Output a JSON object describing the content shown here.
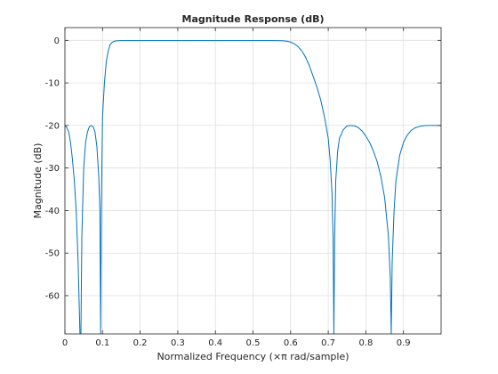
{
  "chart_data": {
    "type": "line",
    "title": "Magnitude Response (dB)",
    "xlabel": "Normalized Frequency (×π rad/sample)",
    "ylabel": "Magnitude (dB)",
    "xlim": [
      0,
      1
    ],
    "ylim": [
      -69,
      3
    ],
    "xticks": [
      0,
      0.1,
      0.2,
      0.3,
      0.4,
      0.5,
      0.6,
      0.7,
      0.8,
      0.9
    ],
    "xtick_labels": [
      "0",
      "0.1",
      "0.2",
      "0.3",
      "0.4",
      "0.5",
      "0.6",
      "0.7",
      "0.8",
      "0.9"
    ],
    "yticks": [
      0,
      -10,
      -20,
      -30,
      -40,
      -50,
      -60
    ],
    "ytick_labels": [
      "0",
      "-10",
      "-20",
      "-30",
      "-40",
      "-50",
      "-60"
    ],
    "grid": true,
    "legend": "none",
    "line_color": "#0072bd",
    "series": [
      {
        "x": [
          0,
          0.005,
          0.01,
          0.015,
          0.02,
          0.025,
          0.03,
          0.035,
          0.04,
          0.0425,
          0.045,
          0.05,
          0.055,
          0.06,
          0.065,
          0.07,
          0.075,
          0.08,
          0.085,
          0.09,
          0.093,
          0.095,
          0.097,
          0.1,
          0.105,
          0.11,
          0.115,
          0.12,
          0.125,
          0.13,
          0.135,
          0.14,
          0.145,
          0.15,
          0.2,
          0.3,
          0.4,
          0.5,
          0.55,
          0.575,
          0.59,
          0.6,
          0.61,
          0.62,
          0.63,
          0.64,
          0.65,
          0.66,
          0.67,
          0.68,
          0.69,
          0.7,
          0.705,
          0.71,
          0.713,
          0.715,
          0.717,
          0.72,
          0.725,
          0.73,
          0.74,
          0.75,
          0.76,
          0.77,
          0.78,
          0.79,
          0.8,
          0.81,
          0.82,
          0.83,
          0.84,
          0.85,
          0.86,
          0.865,
          0.8675,
          0.87,
          0.875,
          0.88,
          0.89,
          0.9,
          0.91,
          0.92,
          0.93,
          0.94,
          0.95,
          0.96,
          0.97,
          0.98,
          0.99,
          1.0
        ],
        "y": [
          -20,
          -20.5,
          -21.5,
          -24,
          -28,
          -33,
          -40,
          -52,
          -69,
          -69,
          -46,
          -30,
          -24,
          -21.5,
          -20.3,
          -20,
          -20.3,
          -21.5,
          -25,
          -32,
          -40,
          -69,
          -38,
          -18,
          -10,
          -5,
          -2.5,
          -1,
          -0.5,
          -0.25,
          -0.15,
          -0.1,
          -0.08,
          -0.07,
          -0.05,
          -0.05,
          -0.05,
          -0.06,
          -0.05,
          -0.1,
          -0.2,
          -0.4,
          -0.8,
          -1.5,
          -2.5,
          -4,
          -6,
          -8.5,
          -11,
          -14,
          -18,
          -23,
          -28,
          -36,
          -47,
          -69,
          -47,
          -33,
          -26,
          -23,
          -21,
          -20.1,
          -20,
          -20.1,
          -20.5,
          -21.3,
          -22.5,
          -24,
          -26,
          -28.5,
          -32,
          -37,
          -46,
          -56,
          -69,
          -52,
          -40,
          -33,
          -27,
          -24,
          -22.3,
          -21.2,
          -20.6,
          -20.3,
          -20.1,
          -20,
          -20,
          -20,
          -20,
          -20
        ]
      }
    ]
  }
}
